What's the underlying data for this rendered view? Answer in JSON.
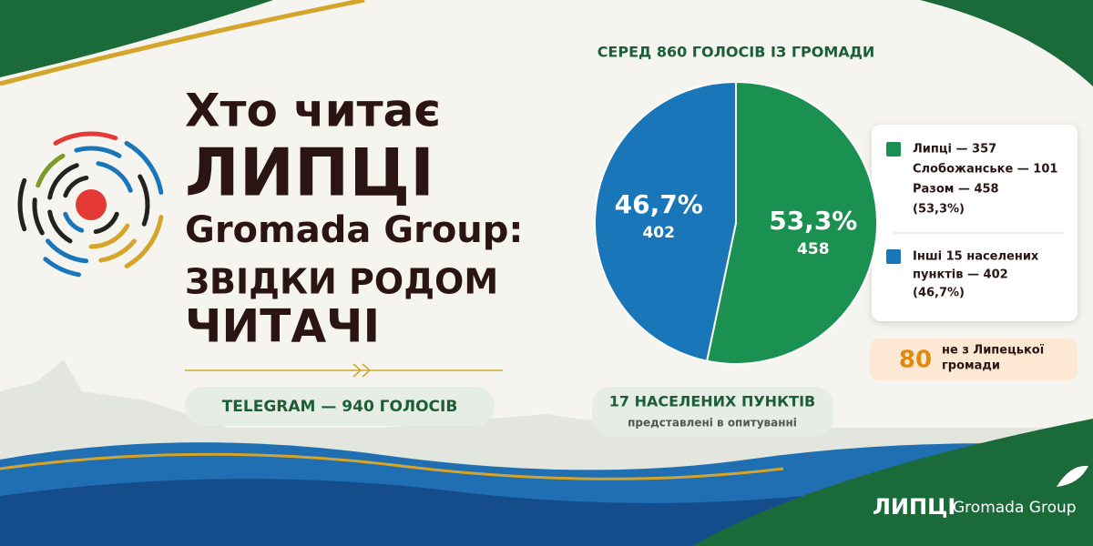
{
  "headline": {
    "lines": [
      "Хто читає",
      "ЛИПЦІ",
      "Gromada Group:",
      "ЗВІДКИ РОДОМ",
      "ЧИТАЧІ"
    ]
  },
  "telegram_badge": "TELEGRAM — 940 ГОЛОСІВ",
  "chart_data": {
    "type": "pie",
    "title": "СЕРЕД 860 ГОЛОСІВ ІЗ ГРОМАДИ",
    "categories": [
      null,
      null
    ],
    "values": [
      53.3,
      46.7
    ],
    "value_labels": [
      "53,3%",
      "46,7%"
    ],
    "counts": [
      458,
      402
    ],
    "colors": [
      "#1a9150",
      "#1976b8"
    ]
  },
  "legend": {
    "items": [
      {
        "lines": [
          "Липці — 357",
          "Слобожанське — 101",
          "Разом — 458",
          "(53,3%)"
        ]
      },
      {
        "lines": [
          "Інші 15 населених",
          "пунктів — 402",
          "(46,7%)"
        ]
      }
    ]
  },
  "settlements_badge": {
    "title": "17 НАСЕЛЕНИХ ПУНКТІВ",
    "subtitle": "представлені в опитуванні"
  },
  "outside_badge": {
    "number": 80,
    "lines": [
      "не з Липецької",
      "громади"
    ]
  },
  "brand": {
    "name": "ЛИПЦІ",
    "suffix": "Gromada Group"
  }
}
